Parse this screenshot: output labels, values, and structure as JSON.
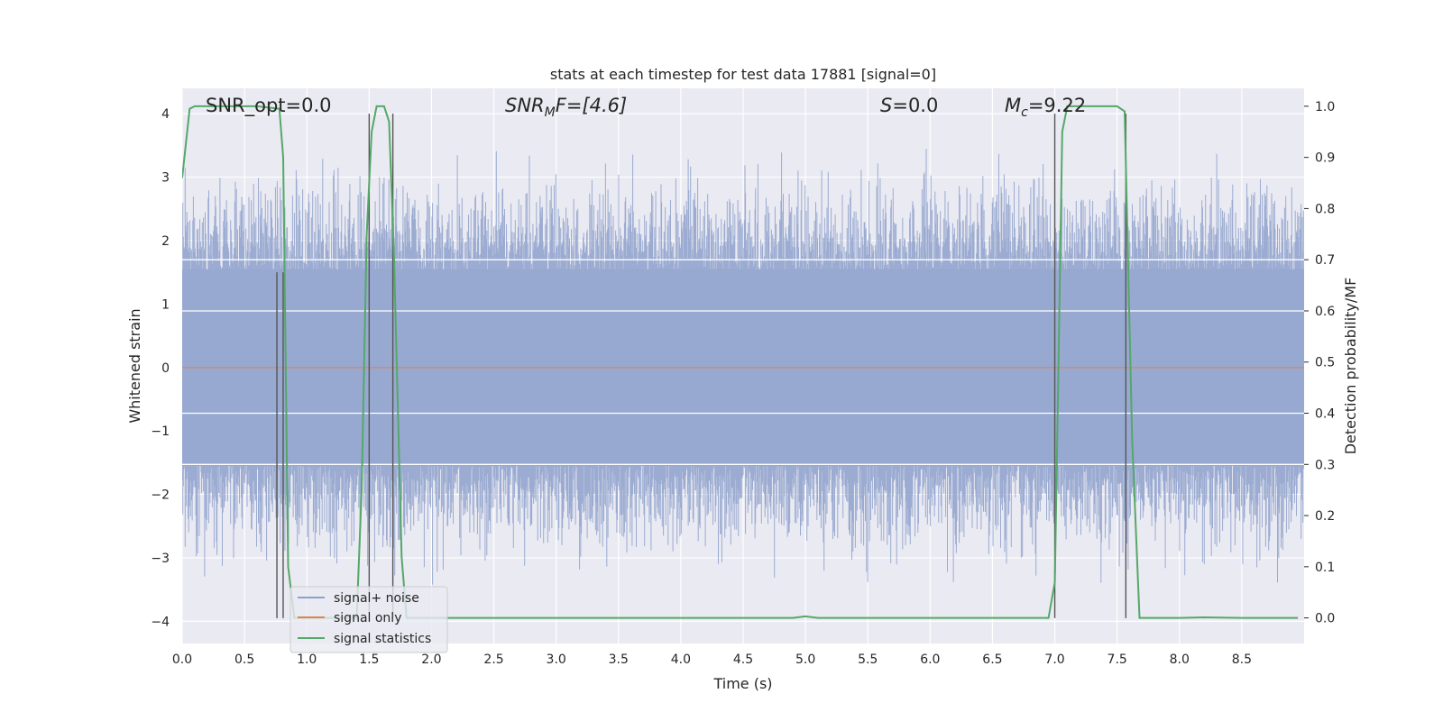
{
  "chart_data": {
    "type": "line",
    "title": "stats at each timestep for test data 17881 [signal=0]",
    "xlabel": "Time (s)",
    "ylabel": "Whitened strain",
    "ylabel_right": "Detection probability/MF",
    "xlim": [
      0.0,
      9.0
    ],
    "ylim": [
      -4.35,
      4.4
    ],
    "ylim_right": [
      -0.05,
      1.035
    ],
    "x_ticks": [
      "0.0",
      "0.5",
      "1.0",
      "1.5",
      "2.0",
      "2.5",
      "3.0",
      "3.5",
      "4.0",
      "4.5",
      "5.0",
      "5.5",
      "6.0",
      "6.5",
      "7.0",
      "7.5",
      "8.0",
      "8.5"
    ],
    "y_ticks": [
      "4",
      "3",
      "2",
      "1",
      "0",
      "−1",
      "−2",
      "−3",
      "−4"
    ],
    "y_ticks_right": [
      "1.0",
      "0.9",
      "0.8",
      "0.7",
      "0.6",
      "0.5",
      "0.4",
      "0.3",
      "0.2",
      "0.1",
      "0.0"
    ],
    "grid": true,
    "legend_position": "lower-left",
    "annotations": {
      "snr_opt": "SNR_opt=0.0",
      "snr_mf_prefix": "SNR",
      "snr_mf_sub": "M",
      "snr_mf_suffix": "F=[4.6]",
      "s_stat_var": "S",
      "s_stat_val": "=0.0",
      "mc_var": "M",
      "mc_sub": "c",
      "mc_val": "=9.22"
    },
    "legend": [
      "signal+ noise",
      "signal only",
      "signal statistics"
    ],
    "series": [
      {
        "name": "signal+ noise",
        "color": "#8da0cb",
        "values_summary": "whitened noise, roughly within -3.7 to 4.0 over 0-9 s"
      },
      {
        "name": "signal only",
        "color": "#dd8452",
        "values_summary": "flat at 0"
      },
      {
        "name": "signal statistics",
        "color": "#55a868",
        "axis": "right",
        "x": [
          0.0,
          0.06,
          0.1,
          0.2,
          0.4,
          0.6,
          0.78,
          0.81,
          0.85,
          0.9,
          1.0,
          1.2,
          1.4,
          1.44,
          1.48,
          1.52,
          1.56,
          1.62,
          1.66,
          1.7,
          1.76,
          1.8,
          2.0,
          2.5,
          3.0,
          3.5,
          4.0,
          4.5,
          4.9,
          5.0,
          5.1,
          5.5,
          6.0,
          6.5,
          6.95,
          7.0,
          7.03,
          7.06,
          7.1,
          7.3,
          7.5,
          7.56,
          7.62,
          7.68,
          7.8,
          8.0,
          8.2,
          8.5,
          8.95
        ],
        "y": [
          0.86,
          0.995,
          1.0,
          1.0,
          1.0,
          1.0,
          0.995,
          0.9,
          0.1,
          0.0,
          0.0,
          0.0,
          0.0,
          0.25,
          0.75,
          0.95,
          1.0,
          1.0,
          0.97,
          0.7,
          0.12,
          0.0,
          0.0,
          0.0,
          0.0,
          0.0,
          0.0,
          0.0,
          0.0,
          0.003,
          0.0,
          0.0,
          0.0,
          0.0,
          0.0,
          0.07,
          0.5,
          0.95,
          1.0,
          1.0,
          1.0,
          0.99,
          0.35,
          0.0,
          0.0,
          0.0,
          0.001,
          0.0,
          0.0
        ]
      }
    ],
    "vertical_markers": [
      {
        "x": 0.76,
        "y_from": -3.95,
        "y_to": 1.5
      },
      {
        "x": 0.81,
        "y_from": -3.95,
        "y_to": 1.5
      },
      {
        "x": 1.5,
        "y_from": -3.95,
        "y_to": 4.0
      },
      {
        "x": 1.69,
        "y_from": -3.95,
        "y_to": 4.0
      },
      {
        "x": 7.0,
        "y_from": -3.95,
        "y_to": 4.0
      },
      {
        "x": 7.57,
        "y_from": -3.95,
        "y_to": 4.0
      }
    ],
    "horizontal_lines_right": [
      0.7,
      0.6,
      0.4,
      0.3
    ]
  }
}
